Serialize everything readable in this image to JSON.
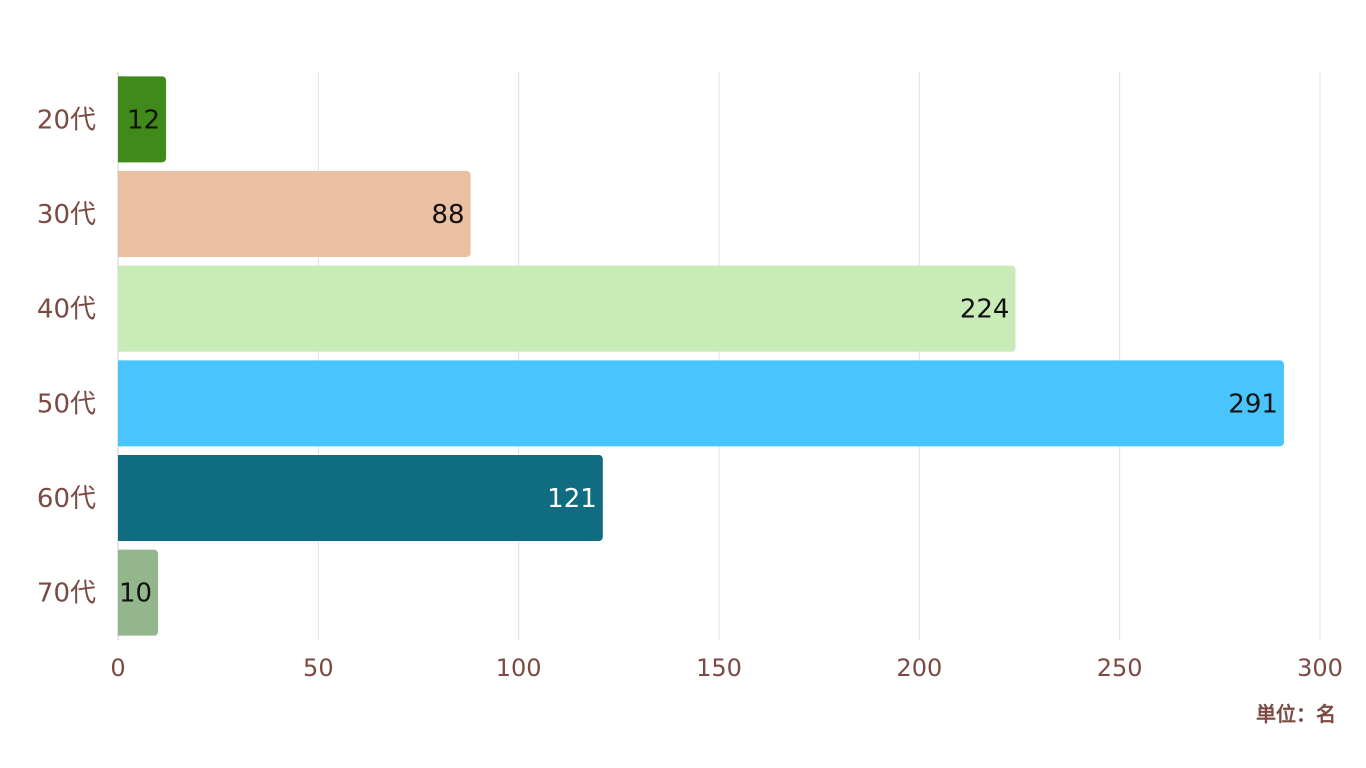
{
  "chart_data": {
    "type": "bar",
    "orientation": "horizontal",
    "categories": [
      "20代",
      "30代",
      "40代",
      "50代",
      "60代",
      "70代"
    ],
    "values": [
      12,
      88,
      224,
      291,
      121,
      10
    ],
    "bar_colors": [
      "#3f8a1b",
      "#ebbfa1",
      "#c9ebb8",
      "#4ac4fc",
      "#106c80",
      "#94b68d"
    ],
    "label_colors": [
      "#111111",
      "#111111",
      "#111111",
      "#111111",
      "#ffffff",
      "#111111"
    ],
    "xlim": [
      0,
      300
    ],
    "xticks": [
      0,
      50,
      100,
      150,
      200,
      250,
      300
    ],
    "grid": true,
    "unit_label": "単位：名",
    "axis_text_color": "#7a4a43",
    "grid_color": "#e0e0e0"
  }
}
